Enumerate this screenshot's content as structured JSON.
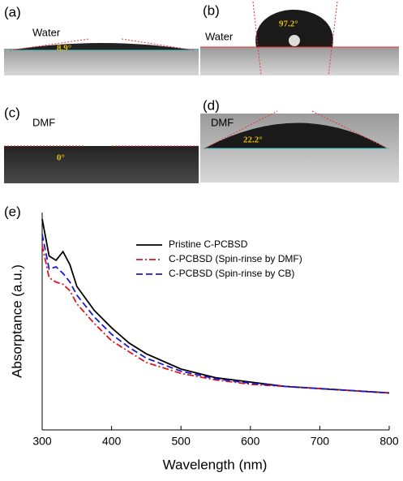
{
  "panels": [
    {
      "label": "(a)",
      "liquid": "Water",
      "angle": "8.9°"
    },
    {
      "label": "(b)",
      "liquid": "Water",
      "angle": "97.2°"
    },
    {
      "label": "(c)",
      "liquid": "DMF",
      "angle": "0°"
    },
    {
      "label": "(d)",
      "liquid": "DMF",
      "angle": "22.2°"
    }
  ],
  "chart_data": {
    "type": "line",
    "label": "(e)",
    "xlabel": "Wavelength (nm)",
    "ylabel": "Absorptance (a.u.)",
    "x": [
      300,
      310,
      320,
      330,
      340,
      350,
      375,
      400,
      425,
      450,
      500,
      550,
      600,
      650,
      700,
      750,
      800
    ],
    "series": [
      {
        "name": "Pristine C-PCBSD",
        "color": "#000000",
        "dash": "solid",
        "values": [
          0.97,
          0.8,
          0.78,
          0.82,
          0.76,
          0.66,
          0.55,
          0.47,
          0.4,
          0.35,
          0.28,
          0.24,
          0.22,
          0.2,
          0.19,
          0.18,
          0.17
        ]
      },
      {
        "name": "C-PCBSD (Spin-rinse by DMF)",
        "color": "#e0161b",
        "dash": "dashdot",
        "values": [
          0.85,
          0.7,
          0.68,
          0.67,
          0.64,
          0.58,
          0.49,
          0.41,
          0.36,
          0.31,
          0.26,
          0.23,
          0.21,
          0.2,
          0.19,
          0.18,
          0.17
        ]
      },
      {
        "name": "C-PCBSD (Spin-rinse by CB)",
        "color": "#1a1ad0",
        "dash": "dash",
        "values": [
          0.9,
          0.74,
          0.75,
          0.72,
          0.68,
          0.62,
          0.52,
          0.44,
          0.38,
          0.33,
          0.27,
          0.235,
          0.215,
          0.2,
          0.19,
          0.18,
          0.17
        ]
      }
    ],
    "xlim": [
      300,
      800
    ],
    "ylim": [
      0,
      1
    ],
    "xticks": [
      300,
      400,
      500,
      600,
      700,
      800
    ]
  }
}
